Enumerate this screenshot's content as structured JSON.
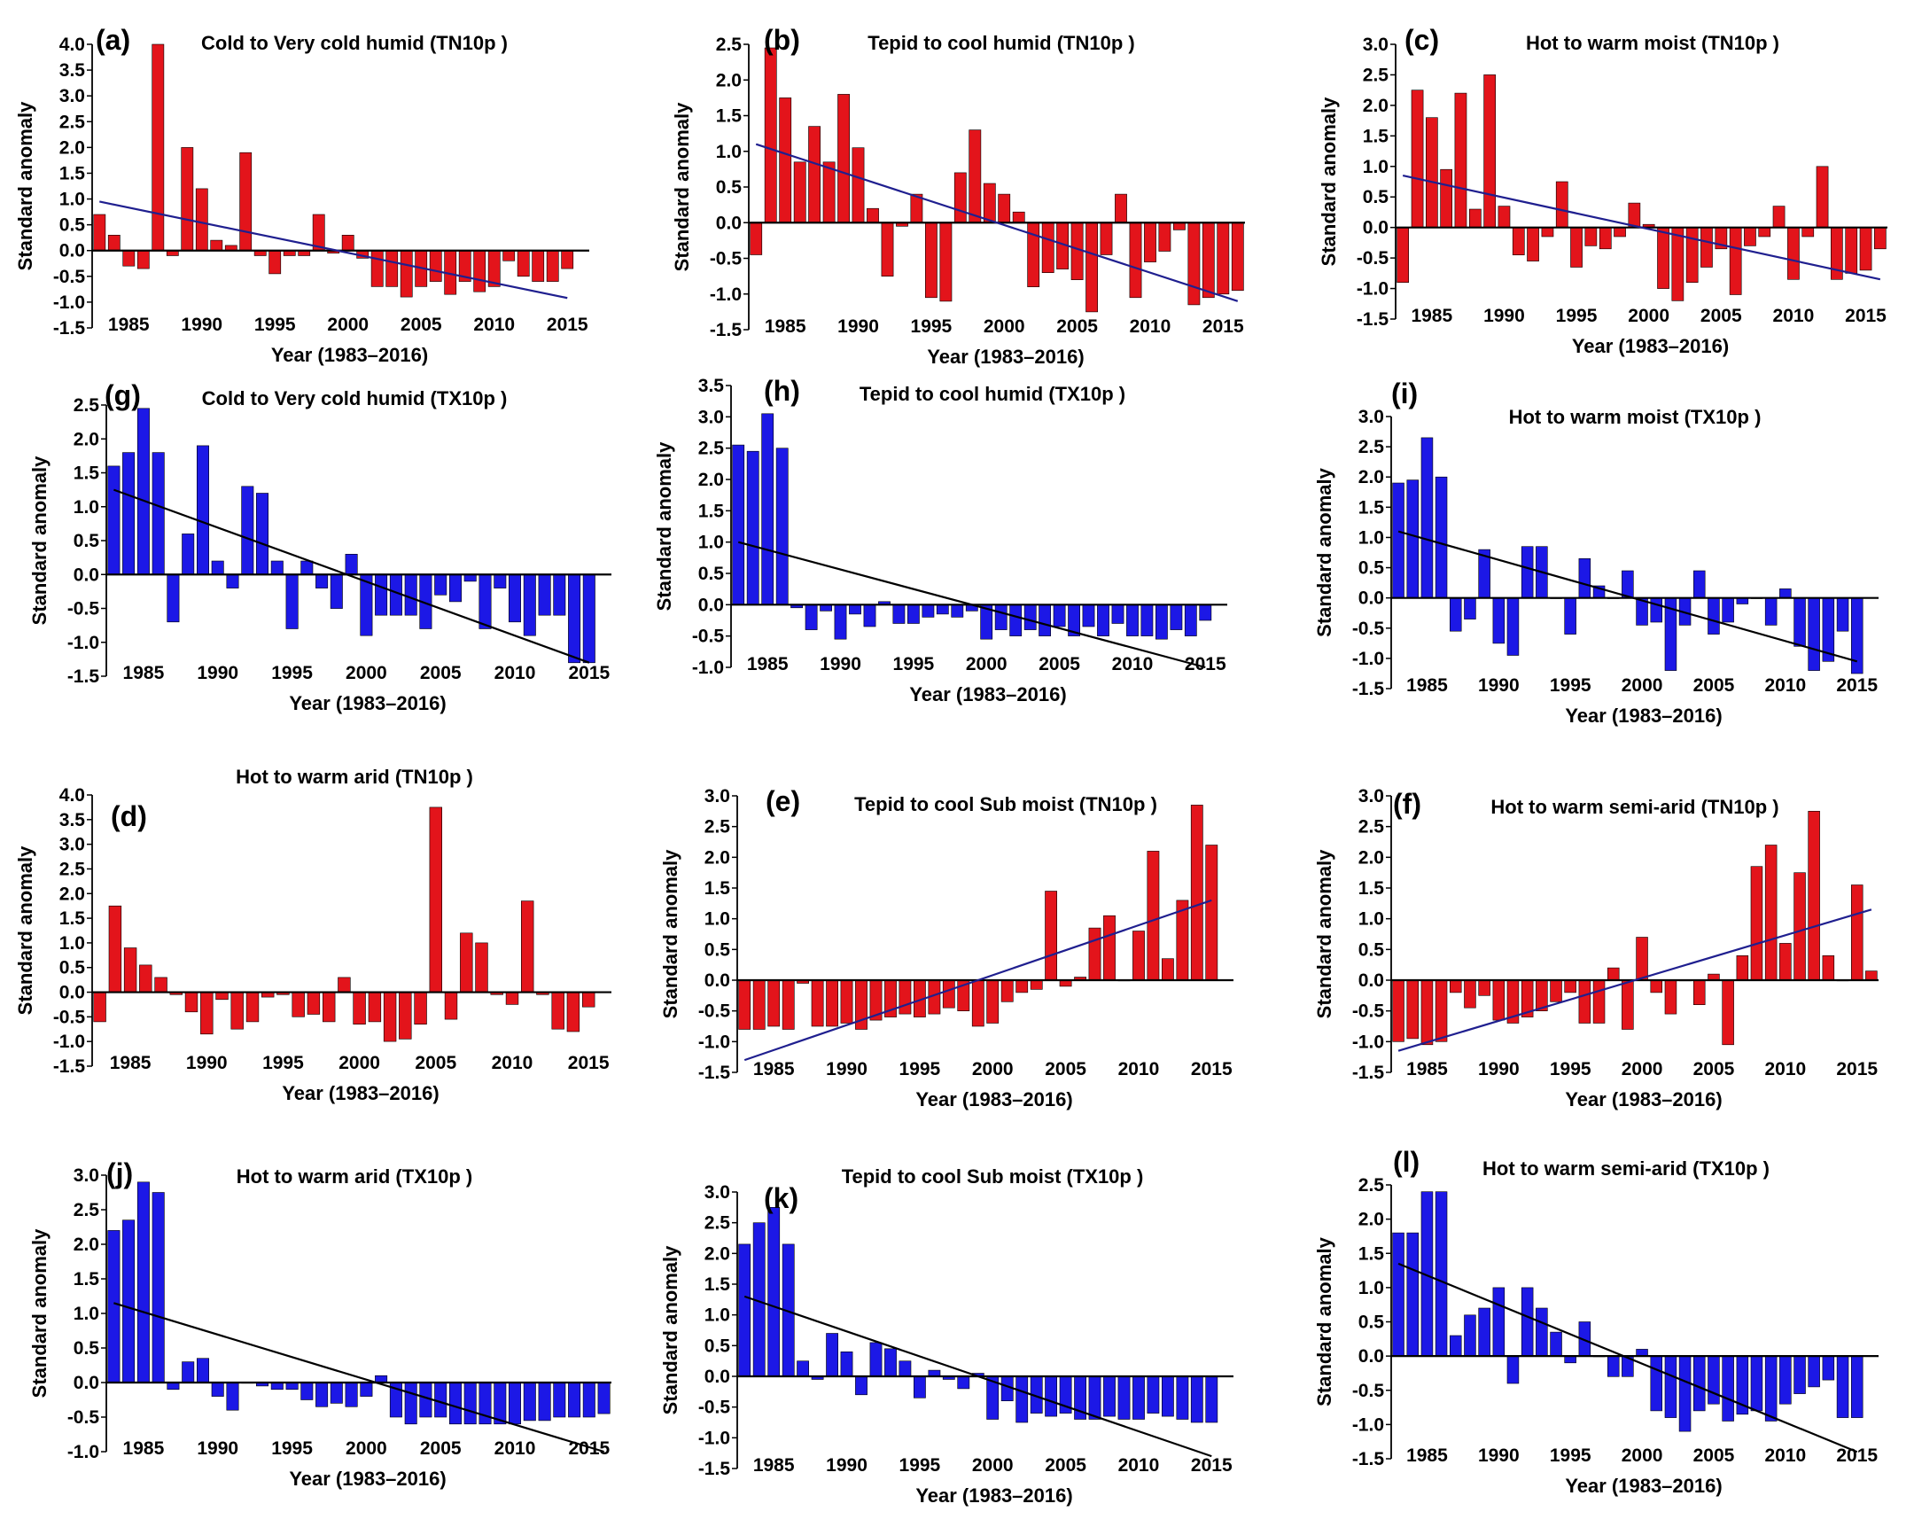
{
  "colors": {
    "tn_bar": "#e3141b",
    "tx_bar": "#1c18e6",
    "tn_trend": "#1f1f8f",
    "tx_trend": "#000000"
  },
  "chart_data": [
    {
      "id": "a",
      "label": "(a)",
      "title": "Cold to Very cold humid (TN10p )",
      "type": "bar",
      "color": "tn",
      "xlabel": "Year (1983–2016)",
      "ylabel": "Standard anomaly",
      "ylim": [
        -1.5,
        4.0
      ],
      "ystep": 0.5,
      "ytick_decimals": 1,
      "x_start": 1983,
      "xticks": [
        1985,
        1990,
        1995,
        2000,
        2005,
        2010,
        2015
      ],
      "ytick_labels": [
        "-1.5",
        "-1.0",
        "-0.5",
        "0.0",
        "0.5",
        "1.0",
        "1.5",
        "2.0",
        "2.5",
        "3.0",
        "3.5",
        "4.0"
      ],
      "xtick_labels": [
        "1985",
        "1990",
        "1995",
        "2000",
        "2005",
        "2010",
        "2015"
      ],
      "values": [
        0.7,
        0.3,
        -0.3,
        -0.35,
        4.0,
        -0.1,
        2.0,
        1.2,
        0.2,
        0.1,
        1.9,
        -0.1,
        -0.45,
        -0.1,
        -0.1,
        0.7,
        -0.05,
        0.3,
        -0.15,
        -0.7,
        -0.7,
        -0.9,
        -0.7,
        -0.6,
        -0.85,
        -0.6,
        -0.8,
        -0.7,
        -0.2,
        -0.5,
        -0.6,
        -0.6,
        -0.35
      ],
      "trend": [
        0.95,
        -0.92
      ]
    },
    {
      "id": "b",
      "label": "(b)",
      "title": "Tepid to cool humid (TN10p )",
      "type": "bar",
      "color": "tn",
      "xlabel": "Year (1983–2016)",
      "ylabel": "Standard anomaly",
      "ylim": [
        -1.5,
        2.5
      ],
      "ystep": 0.5,
      "ytick_decimals": 1,
      "x_start": 1983,
      "xticks": [
        1985,
        1990,
        1995,
        2000,
        2005,
        2010,
        2015
      ],
      "ytick_labels": [
        "-1.5",
        "-1.0",
        "-0.5",
        "0.0",
        "0.5",
        "1.0",
        "1.5",
        "2.0",
        "2.5"
      ],
      "xtick_labels": [
        "1985",
        "1990",
        "1995",
        "2000",
        "2005",
        "2010",
        "2015"
      ],
      "values": [
        -0.45,
        2.45,
        1.75,
        0.85,
        1.35,
        0.85,
        1.8,
        1.05,
        0.2,
        -0.75,
        -0.05,
        0.4,
        -1.05,
        -1.1,
        0.7,
        1.3,
        0.55,
        0.4,
        0.15,
        -0.9,
        -0.7,
        -0.65,
        -0.8,
        -1.25,
        -0.45,
        0.4,
        -1.05,
        -0.55,
        -0.4,
        -0.1,
        -1.15,
        -1.05,
        -1.0,
        -0.95
      ],
      "trend": [
        1.1,
        -1.1
      ]
    },
    {
      "id": "c",
      "label": "(c)",
      "title": "Hot to warm moist (TN10p )",
      "type": "bar",
      "color": "tn",
      "xlabel": "Year (1983–2016)",
      "ylabel": "Standard anomaly",
      "ylim": [
        -1.5,
        3.0
      ],
      "ystep": 0.5,
      "ytick_decimals": 1,
      "x_start": 1983,
      "xticks": [
        1985,
        1990,
        1995,
        2000,
        2005,
        2010,
        2015
      ],
      "ytick_labels": [
        "-1.5",
        "-1.0",
        "-0.5",
        "0.0",
        "0.5",
        "1.0",
        "1.5",
        "2.0",
        "2.5",
        "3.0"
      ],
      "xtick_labels": [
        "1985",
        "1990",
        "1995",
        "2000",
        "2005",
        "2010",
        "2015"
      ],
      "values": [
        -0.9,
        2.25,
        1.8,
        0.95,
        2.2,
        0.3,
        2.5,
        0.35,
        -0.45,
        -0.55,
        -0.15,
        0.75,
        -0.65,
        -0.3,
        -0.35,
        -0.15,
        0.4,
        0.05,
        -1.0,
        -1.2,
        -0.9,
        -0.65,
        -0.35,
        -1.1,
        -0.3,
        -0.15,
        0.35,
        -0.85,
        -0.15,
        1.0,
        -0.85,
        -0.75,
        -0.7,
        -0.35
      ],
      "trend": [
        0.85,
        -0.85
      ]
    },
    {
      "id": "g",
      "label": "(g)",
      "title": "Cold to Very cold humid (TX10p )",
      "type": "bar",
      "color": "tx",
      "xlabel": "Year (1983–2016)",
      "ylabel": "Standard anomaly",
      "ylim": [
        -1.5,
        2.5
      ],
      "ystep": 0.5,
      "ytick_decimals": 1,
      "x_start": 1983,
      "xticks": [
        1985,
        1990,
        1995,
        2000,
        2005,
        2010,
        2015
      ],
      "ytick_labels": [
        "-1.5",
        "-1.0",
        "-0.5",
        "0.0",
        "0.5",
        "1.0",
        "1.5",
        "2.0",
        "2.5"
      ],
      "xtick_labels": [
        "1985",
        "1990",
        "1995",
        "2000",
        "2005",
        "2010",
        "2015"
      ],
      "values": [
        1.6,
        1.8,
        2.45,
        1.8,
        -0.7,
        0.6,
        1.9,
        0.2,
        -0.2,
        1.3,
        1.2,
        0.2,
        -0.8,
        0.2,
        -0.2,
        -0.5,
        0.3,
        -0.9,
        -0.6,
        -0.6,
        -0.6,
        -0.8,
        -0.3,
        -0.4,
        -0.1,
        -0.8,
        -0.2,
        -0.7,
        -0.9,
        -0.6,
        -0.6,
        -1.3,
        -1.3
      ],
      "trend": [
        1.25,
        -1.3
      ]
    },
    {
      "id": "h",
      "label": "(h)",
      "title": "Tepid to cool humid (TX10p )",
      "type": "bar",
      "color": "tx",
      "xlabel": "Year (1983–2016)",
      "ylabel": "Standard anomaly",
      "ylim": [
        -1.0,
        3.5
      ],
      "ystep": 0.5,
      "ytick_decimals": 1,
      "x_start": 1983,
      "xticks": [
        1985,
        1990,
        1995,
        2000,
        2005,
        2010,
        2015
      ],
      "ytick_labels": [
        "-1.0",
        "-0.5",
        "0.0",
        "0.5",
        "1.0",
        "1.5",
        "2.0",
        "2.5",
        "3.0",
        "3.5"
      ],
      "xtick_labels": [
        "1985",
        "1990",
        "1995",
        "2000",
        "2005",
        "2010",
        "2015"
      ],
      "values": [
        2.55,
        2.45,
        3.05,
        2.5,
        -0.05,
        -0.4,
        -0.1,
        -0.55,
        -0.15,
        -0.35,
        0.05,
        -0.3,
        -0.3,
        -0.2,
        -0.15,
        -0.2,
        -0.1,
        -0.55,
        -0.4,
        -0.5,
        -0.4,
        -0.5,
        -0.35,
        -0.5,
        -0.35,
        -0.5,
        -0.3,
        -0.5,
        -0.5,
        -0.55,
        -0.4,
        -0.5,
        -0.25
      ],
      "trend": [
        1.0,
        -1.0
      ]
    },
    {
      "id": "i",
      "label": "(i)",
      "title": "Hot to warm moist (TX10p )",
      "type": "bar",
      "color": "tx",
      "xlabel": "Year (1983–2016)",
      "ylabel": "Standard anomaly",
      "ylim": [
        -1.5,
        3.0
      ],
      "ystep": 0.5,
      "ytick_decimals": 1,
      "x_start": 1983,
      "xticks": [
        1985,
        1990,
        1995,
        2000,
        2005,
        2010,
        2015
      ],
      "ytick_labels": [
        "-1.5",
        "-1.0",
        "-0.5",
        "0.0",
        "0.5",
        "1.0",
        "1.5",
        "2.0",
        "2.5",
        "3.0"
      ],
      "xtick_labels": [
        "1985",
        "1990",
        "1995",
        "2000",
        "2005",
        "2010",
        "2015"
      ],
      "values": [
        1.9,
        1.95,
        2.65,
        2.0,
        -0.55,
        -0.35,
        0.8,
        -0.75,
        -0.95,
        0.85,
        0.85,
        0.0,
        -0.6,
        0.65,
        0.2,
        0.0,
        0.45,
        -0.45,
        -0.4,
        -1.2,
        -0.45,
        0.45,
        -0.6,
        -0.4,
        -0.1,
        0.0,
        -0.45,
        0.15,
        -0.8,
        -1.2,
        -1.05,
        -0.55,
        -1.25
      ],
      "trend": [
        1.1,
        -1.05
      ]
    },
    {
      "id": "d",
      "label": "(d)",
      "title": "Hot to warm arid (TN10p )",
      "type": "bar",
      "color": "tn",
      "xlabel": "Year (1983–2016)",
      "ylabel": "Standard anomaly",
      "ylim": [
        -1.5,
        4.0
      ],
      "ystep": 0.5,
      "ytick_decimals": 1,
      "x_start": 1983,
      "xticks": [
        1985,
        1990,
        1995,
        2000,
        2005,
        2010,
        2015
      ],
      "ytick_labels": [
        "-1.5",
        "-1.0",
        "-0.5",
        "0.0",
        "0.5",
        "1.0",
        "1.5",
        "2.0",
        "2.5",
        "3.0",
        "3.5",
        "4.0"
      ],
      "xtick_labels": [
        "1985",
        "1990",
        "1995",
        "2000",
        "2005",
        "2010",
        "2015"
      ],
      "values": [
        -0.6,
        1.75,
        0.9,
        0.55,
        0.3,
        -0.05,
        -0.4,
        -0.85,
        -0.15,
        -0.75,
        -0.6,
        -0.1,
        -0.05,
        -0.5,
        -0.45,
        -0.6,
        0.3,
        -0.65,
        -0.6,
        -1.0,
        -0.95,
        -0.65,
        3.75,
        -0.55,
        1.2,
        1.0,
        -0.05,
        -0.25,
        1.85,
        -0.05,
        -0.75,
        -0.8,
        -0.3
      ],
      "trend": null
    },
    {
      "id": "e",
      "label": "(e)",
      "title": "Tepid to cool Sub moist (TN10p )",
      "type": "bar",
      "color": "tn",
      "xlabel": "Year (1983–2016)",
      "ylabel": "Standard anomaly",
      "ylim": [
        -1.5,
        3.0
      ],
      "ystep": 0.5,
      "ytick_decimals": 1,
      "x_start": 1983,
      "xticks": [
        1985,
        1990,
        1995,
        2000,
        2005,
        2010,
        2015
      ],
      "ytick_labels": [
        "-1.5",
        "-1.0",
        "-0.5",
        "0.0",
        "0.5",
        "1.0",
        "1.5",
        "2.0",
        "2.5",
        "3.0"
      ],
      "xtick_labels": [
        "1985",
        "1990",
        "1995",
        "2000",
        "2005",
        "2010",
        "2015"
      ],
      "values": [
        -0.8,
        -0.8,
        -0.75,
        -0.8,
        -0.05,
        -0.75,
        -0.75,
        -0.7,
        -0.8,
        -0.65,
        -0.6,
        -0.55,
        -0.6,
        -0.55,
        -0.45,
        -0.5,
        -0.75,
        -0.7,
        -0.35,
        -0.2,
        -0.15,
        1.45,
        -0.1,
        0.05,
        0.85,
        1.05,
        0.0,
        0.8,
        2.1,
        0.35,
        1.3,
        2.85,
        2.2
      ],
      "trend": [
        -1.3,
        1.3
      ]
    },
    {
      "id": "f",
      "label": "(f)",
      "title": "Hot to warm semi-arid (TN10p )",
      "type": "bar",
      "color": "tn",
      "xlabel": "Year (1983–2016)",
      "ylabel": "Standard anomaly",
      "ylim": [
        -1.5,
        3.0
      ],
      "ystep": 0.5,
      "ytick_decimals": 1,
      "x_start": 1983,
      "xticks": [
        1985,
        1990,
        1995,
        2000,
        2005,
        2010,
        2015
      ],
      "ytick_labels": [
        "-1.5",
        "-1.0",
        "-0.5",
        "0.0",
        "0.5",
        "1.0",
        "1.5",
        "2.0",
        "2.5",
        "3.0"
      ],
      "xtick_labels": [
        "1985",
        "1990",
        "1995",
        "2000",
        "2005",
        "2010",
        "2015"
      ],
      "values": [
        -1.0,
        -0.95,
        -1.05,
        -1.0,
        -0.2,
        -0.45,
        -0.25,
        -0.65,
        -0.7,
        -0.6,
        -0.5,
        -0.35,
        -0.2,
        -0.7,
        -0.7,
        0.2,
        -0.8,
        0.7,
        -0.2,
        -0.55,
        0.0,
        -0.4,
        0.1,
        -1.05,
        0.4,
        1.85,
        2.2,
        0.6,
        1.75,
        2.75,
        0.4,
        0.0,
        1.55,
        0.15
      ],
      "trend": [
        -1.15,
        1.15
      ]
    },
    {
      "id": "j",
      "label": "(j)",
      "title": "Hot to warm arid (TX10p )",
      "type": "bar",
      "color": "tx",
      "xlabel": "Year (1983–2016)",
      "ylabel": "Standard anomaly",
      "ylim": [
        -1.0,
        3.0
      ],
      "ystep": 0.5,
      "ytick_decimals": 1,
      "x_start": 1983,
      "xticks": [
        1985,
        1990,
        1995,
        2000,
        2005,
        2010,
        2015
      ],
      "ytick_labels": [
        "-1.0",
        "-0.5",
        "0.0",
        "0.5",
        "1.0",
        "1.5",
        "2.0",
        "2.5",
        "3.0"
      ],
      "xtick_labels": [
        "1985",
        "1990",
        "1995",
        "2000",
        "2005",
        "2010",
        "2015"
      ],
      "values": [
        2.2,
        2.35,
        2.9,
        2.75,
        -0.1,
        0.3,
        0.35,
        -0.2,
        -0.4,
        0.0,
        -0.05,
        -0.1,
        -0.1,
        -0.25,
        -0.35,
        -0.3,
        -0.35,
        -0.2,
        0.1,
        -0.5,
        -0.6,
        -0.5,
        -0.5,
        -0.6,
        -0.6,
        -0.6,
        -0.6,
        -0.6,
        -0.55,
        -0.55,
        -0.5,
        -0.5,
        -0.5,
        -0.45
      ],
      "trend": [
        1.15,
        -1.0
      ]
    },
    {
      "id": "k",
      "label": "(k)",
      "title": "Tepid to cool Sub moist (TX10p )",
      "type": "bar",
      "color": "tx",
      "xlabel": "Year (1983–2016)",
      "ylabel": "Standard anomaly",
      "ylim": [
        -1.5,
        3.0
      ],
      "ystep": 0.5,
      "ytick_decimals": 1,
      "x_start": 1983,
      "xticks": [
        1985,
        1990,
        1995,
        2000,
        2005,
        2010,
        2015
      ],
      "ytick_labels": [
        "-1.5",
        "-1.0",
        "-0.5",
        "0.0",
        "0.5",
        "1.0",
        "1.5",
        "2.0",
        "2.5",
        "3.0"
      ],
      "xtick_labels": [
        "1985",
        "1990",
        "1995",
        "2000",
        "2005",
        "2010",
        "2015"
      ],
      "values": [
        2.15,
        2.5,
        2.75,
        2.15,
        0.25,
        -0.05,
        0.7,
        0.4,
        -0.3,
        0.55,
        0.45,
        0.25,
        -0.35,
        0.1,
        -0.05,
        -0.2,
        0.05,
        -0.7,
        -0.4,
        -0.75,
        -0.6,
        -0.65,
        -0.6,
        -0.7,
        -0.7,
        -0.65,
        -0.7,
        -0.7,
        -0.6,
        -0.65,
        -0.7,
        -0.75,
        -0.75
      ],
      "trend": [
        1.3,
        -1.3
      ]
    },
    {
      "id": "l",
      "label": "(l)",
      "title": "Hot to warm semi-arid (TX10p )",
      "type": "bar",
      "color": "tx",
      "xlabel": "Year (1983–2016)",
      "ylabel": "Standard anomaly",
      "ylim": [
        -1.5,
        2.5
      ],
      "ystep": 0.5,
      "ytick_decimals": 1,
      "x_start": 1983,
      "xticks": [
        1985,
        1990,
        1995,
        2000,
        2005,
        2010,
        2015
      ],
      "ytick_labels": [
        "-1.5",
        "-1.0",
        "-0.5",
        "0.0",
        "0.5",
        "1.0",
        "1.5",
        "2.0",
        "2.5"
      ],
      "xtick_labels": [
        "1985",
        "1990",
        "1995",
        "2000",
        "2005",
        "2010",
        "2015"
      ],
      "values": [
        1.8,
        1.8,
        2.4,
        2.4,
        0.3,
        0.6,
        0.7,
        1.0,
        -0.4,
        1.0,
        0.7,
        0.35,
        -0.1,
        0.5,
        0.0,
        -0.3,
        -0.3,
        0.1,
        -0.8,
        -0.9,
        -1.1,
        -0.8,
        -0.7,
        -0.95,
        -0.85,
        -0.8,
        -0.95,
        -0.7,
        -0.55,
        -0.45,
        -0.35,
        -0.9,
        -0.9
      ],
      "trend": [
        1.35,
        -1.4
      ]
    }
  ]
}
